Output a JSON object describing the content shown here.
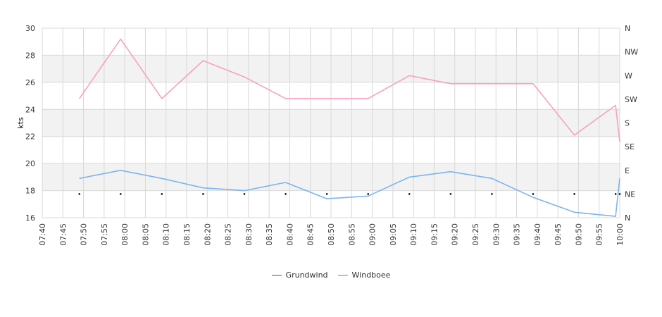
{
  "chart_data": {
    "type": "line",
    "ylabel": "kts",
    "ylim": [
      16,
      30
    ],
    "y_ticks": [
      "16",
      "18",
      "20",
      "22",
      "24",
      "26",
      "28",
      "30"
    ],
    "x_ticks": [
      "07:40",
      "07:45",
      "07:50",
      "07:55",
      "08:00",
      "08:05",
      "08:10",
      "08:15",
      "08:20",
      "08:25",
      "08:30",
      "08:35",
      "08:40",
      "08:45",
      "08:50",
      "08:55",
      "09:00",
      "09:05",
      "09:10",
      "09:15",
      "09:20",
      "09:25",
      "09:30",
      "09:35",
      "09:40",
      "09:45",
      "09:50",
      "09:55",
      "10:00"
    ],
    "right_axis_labels": [
      "N",
      "NE",
      "E",
      "SE",
      "S",
      "SW",
      "W",
      "NW",
      "N"
    ],
    "grid": true,
    "legend_position": "bottom",
    "series": [
      {
        "name": "Grundwind",
        "color": "#7cb5ec",
        "points": [
          [
            "07:49",
            18.9
          ],
          [
            "07:59",
            19.5
          ],
          [
            "08:09",
            18.9
          ],
          [
            "08:19",
            18.2
          ],
          [
            "08:29",
            18.0
          ],
          [
            "08:39",
            18.6
          ],
          [
            "08:49",
            17.4
          ],
          [
            "08:59",
            17.6
          ],
          [
            "09:09",
            19.0
          ],
          [
            "09:19",
            19.4
          ],
          [
            "09:29",
            18.9
          ],
          [
            "09:39",
            17.5
          ],
          [
            "09:49",
            16.4
          ],
          [
            "09:59",
            16.1
          ],
          [
            "10:00",
            18.9
          ]
        ]
      },
      {
        "name": "Windboee",
        "color": "#f7a1c4",
        "points": [
          [
            "07:49",
            24.8
          ],
          [
            "07:59",
            29.2
          ],
          [
            "08:09",
            24.8
          ],
          [
            "08:19",
            27.6
          ],
          [
            "08:29",
            26.4
          ],
          [
            "08:39",
            24.8
          ],
          [
            "08:49",
            24.8
          ],
          [
            "08:59",
            24.8
          ],
          [
            "09:09",
            26.5
          ],
          [
            "09:19",
            25.9
          ],
          [
            "09:29",
            25.9
          ],
          [
            "09:39",
            25.9
          ],
          [
            "09:49",
            22.1
          ],
          [
            "09:59",
            24.3
          ],
          [
            "10:00",
            21.6
          ]
        ]
      }
    ],
    "direction_series": {
      "color": "#000000",
      "points": [
        [
          "07:49",
          "NE"
        ],
        [
          "07:59",
          "NE"
        ],
        [
          "08:09",
          "NE"
        ],
        [
          "08:19",
          "NE"
        ],
        [
          "08:29",
          "NE"
        ],
        [
          "08:39",
          "NE"
        ],
        [
          "08:49",
          "NE"
        ],
        [
          "08:59",
          "NE"
        ],
        [
          "09:09",
          "NE"
        ],
        [
          "09:19",
          "NE"
        ],
        [
          "09:29",
          "NE"
        ],
        [
          "09:39",
          "NE"
        ],
        [
          "09:49",
          "NE"
        ],
        [
          "09:59",
          "NE"
        ],
        [
          "10:00",
          "NE"
        ]
      ]
    }
  }
}
